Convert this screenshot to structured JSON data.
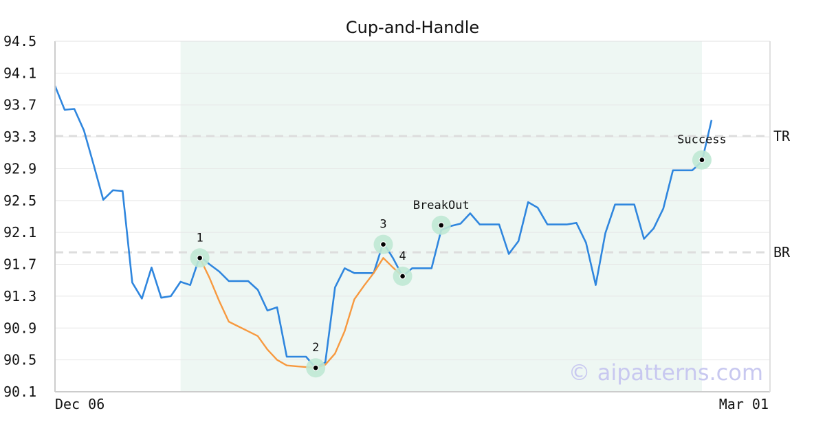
{
  "chart_data": {
    "type": "line",
    "title": "Cup-and-Handle",
    "xlabel": "",
    "ylabel": "",
    "ylim": [
      90.1,
      94.5
    ],
    "y_ticks": [
      "90.1",
      "90.5",
      "90.9",
      "91.3",
      "91.7",
      "92.1",
      "92.5",
      "92.9",
      "93.3",
      "93.7",
      "94.1",
      "94.5"
    ],
    "x_tick_labels": [
      "Dec 06",
      "Mar 01"
    ],
    "grid": "horizontal",
    "series": [
      {
        "color": "#2f86de",
        "values": [
          93.94,
          93.64,
          93.65,
          93.38,
          92.95,
          92.51,
          92.63,
          92.62,
          91.47,
          91.27,
          91.66,
          91.28,
          91.3,
          91.48,
          91.44,
          91.8,
          91.7,
          91.61,
          91.49,
          91.49,
          91.49,
          91.38,
          91.12,
          91.16,
          90.54,
          90.54,
          90.54,
          90.4,
          90.47,
          91.41,
          91.65,
          91.59,
          91.59,
          91.59,
          91.97,
          91.78,
          91.55,
          91.65,
          91.65,
          91.65,
          92.13,
          92.18,
          92.21,
          92.34,
          92.2,
          92.2,
          92.2,
          91.83,
          91.99,
          92.48,
          92.41,
          92.2,
          92.2,
          92.2,
          92.22,
          91.97,
          91.44,
          92.09,
          92.45,
          92.45,
          92.45,
          92.02,
          92.15,
          92.4,
          92.88,
          92.88,
          92.88,
          92.99,
          93.51
        ]
      },
      {
        "color": "#f7993f",
        "x_start_index": 15,
        "values": [
          91.78,
          91.53,
          91.24,
          90.98,
          90.92,
          90.86,
          90.8,
          90.63,
          90.5,
          90.43,
          90.42,
          90.41,
          90.4,
          90.44,
          90.58,
          90.86,
          91.26,
          91.43,
          91.59,
          91.78,
          91.66,
          91.55
        ]
      }
    ],
    "shaded_region": {
      "x_from_index": 13,
      "x_to_index": 67,
      "color": "#eef7f3"
    },
    "levels": [
      {
        "label": "TR",
        "y": 93.31
      },
      {
        "label": "BR",
        "y": 91.85
      }
    ],
    "annotations": [
      {
        "label": "1",
        "x_index": 15,
        "y": 91.78,
        "label_pos": "above"
      },
      {
        "label": "2",
        "x_index": 27,
        "y": 90.4,
        "label_pos": "above"
      },
      {
        "label": "3",
        "x_index": 34,
        "y": 91.95,
        "label_pos": "above"
      },
      {
        "label": "4",
        "x_index": 36,
        "y": 91.55,
        "label_pos": "above"
      },
      {
        "label": "BreakOut",
        "x_index": 40,
        "y": 92.19,
        "label_pos": "above"
      },
      {
        "label": "Success",
        "x_index": 67,
        "y": 93.01,
        "label_pos": "above"
      }
    ],
    "watermark": "© aipatterns.com"
  }
}
